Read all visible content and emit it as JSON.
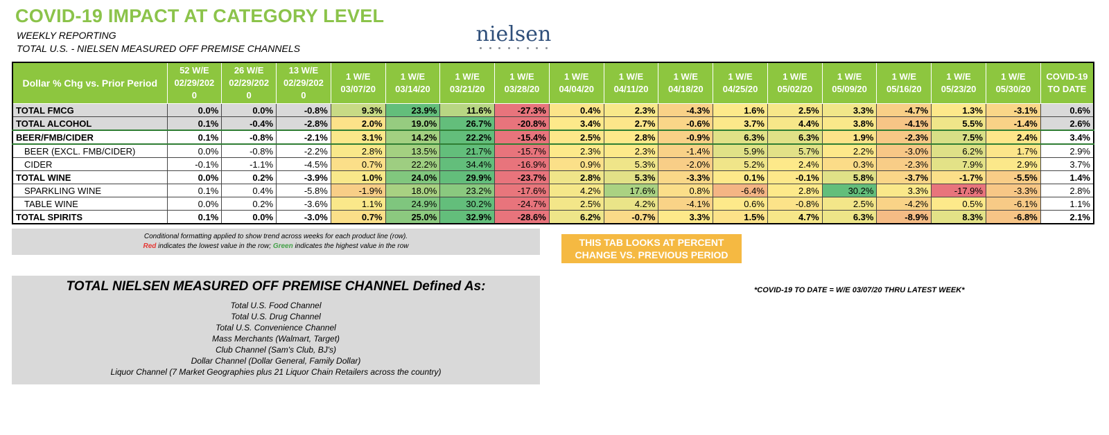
{
  "header": {
    "title": "COVID-19 IMPACT AT CATEGORY LEVEL",
    "subtitle1": "WEEKLY REPORTING",
    "subtitle2": "TOTAL U.S. - NIELSEN MEASURED OFF PREMISE CHANNELS",
    "logo_text": "nielsen"
  },
  "table": {
    "columns": [
      {
        "l1": "Dollar % Chg vs. Prior Period"
      },
      {
        "l1": "52 W/E",
        "l2": "02/29/202",
        "l3": "0"
      },
      {
        "l1": "26 W/E",
        "l2": "02/29/202",
        "l3": "0"
      },
      {
        "l1": "13 W/E",
        "l2": "02/29/202",
        "l3": "0"
      },
      {
        "l1": "1 W/E",
        "l2": "03/07/20"
      },
      {
        "l1": "1 W/E",
        "l2": "03/14/20"
      },
      {
        "l1": "1 W/E",
        "l2": "03/21/20"
      },
      {
        "l1": "1 W/E",
        "l2": "03/28/20"
      },
      {
        "l1": "1 W/E",
        "l2": "04/04/20"
      },
      {
        "l1": "1 W/E",
        "l2": "04/11/20"
      },
      {
        "l1": "1 W/E",
        "l2": "04/18/20"
      },
      {
        "l1": "1 W/E",
        "l2": "04/25/20"
      },
      {
        "l1": "1 W/E",
        "l2": "05/02/20"
      },
      {
        "l1": "1 W/E",
        "l2": "05/09/20"
      },
      {
        "l1": "1 W/E",
        "l2": "05/16/20"
      },
      {
        "l1": "1 W/E",
        "l2": "05/23/20"
      },
      {
        "l1": "1 W/E",
        "l2": "05/30/20"
      },
      {
        "l1": "COVID-19",
        "l2": "TO DATE"
      }
    ],
    "rows": [
      {
        "label": "TOTAL FMCG",
        "style": "bold-grey",
        "values": [
          "0.0%",
          "0.0%",
          "-0.8%",
          "9.3%",
          "23.9%",
          "11.6%",
          "-27.3%",
          "0.4%",
          "2.3%",
          "-4.3%",
          "1.6%",
          "2.5%",
          "3.3%",
          "-4.7%",
          "1.3%",
          "-3.1%",
          "0.6%"
        ]
      },
      {
        "label": "TOTAL ALCOHOL",
        "style": "bold-grey",
        "values": [
          "0.1%",
          "-0.4%",
          "-2.8%",
          "2.0%",
          "19.0%",
          "26.7%",
          "-20.8%",
          "3.4%",
          "2.7%",
          "-0.6%",
          "3.7%",
          "4.4%",
          "3.8%",
          "-4.1%",
          "5.5%",
          "-1.4%",
          "2.6%"
        ]
      },
      {
        "label": "BEER/FMB/CIDER",
        "style": "bold-sel",
        "values": [
          "0.1%",
          "-0.8%",
          "-2.1%",
          "3.1%",
          "14.2%",
          "22.2%",
          "-15.4%",
          "2.5%",
          "2.8%",
          "-0.9%",
          "6.3%",
          "6.3%",
          "1.9%",
          "-2.3%",
          "7.5%",
          "2.4%",
          "3.4%"
        ]
      },
      {
        "label": "BEER (EXCL. FMB/CIDER)",
        "style": "indent",
        "values": [
          "0.0%",
          "-0.8%",
          "-2.2%",
          "2.8%",
          "13.5%",
          "21.7%",
          "-15.7%",
          "2.3%",
          "2.3%",
          "-1.4%",
          "5.9%",
          "5.7%",
          "2.2%",
          "-3.0%",
          "6.2%",
          "1.7%",
          "2.9%"
        ]
      },
      {
        "label": "CIDER",
        "style": "indent",
        "values": [
          "-0.1%",
          "-1.1%",
          "-4.5%",
          "0.7%",
          "22.2%",
          "34.4%",
          "-16.9%",
          "0.9%",
          "5.3%",
          "-2.0%",
          "5.2%",
          "2.4%",
          "0.3%",
          "-2.3%",
          "7.9%",
          "2.9%",
          "3.7%"
        ]
      },
      {
        "label": "TOTAL WINE",
        "style": "bold",
        "values": [
          "0.0%",
          "0.2%",
          "-3.9%",
          "1.0%",
          "24.0%",
          "29.9%",
          "-23.7%",
          "2.8%",
          "5.3%",
          "-3.3%",
          "0.1%",
          "-0.1%",
          "5.8%",
          "-3.7%",
          "-1.7%",
          "-5.5%",
          "1.4%"
        ]
      },
      {
        "label": "SPARKLING WINE",
        "style": "indent",
        "values": [
          "0.1%",
          "0.4%",
          "-5.8%",
          "-1.9%",
          "18.0%",
          "23.2%",
          "-17.6%",
          "4.2%",
          "17.6%",
          "0.8%",
          "-6.4%",
          "2.8%",
          "30.2%",
          "3.3%",
          "-17.9%",
          "-3.3%",
          "2.8%"
        ]
      },
      {
        "label": "TABLE WINE",
        "style": "indent",
        "values": [
          "0.0%",
          "0.2%",
          "-3.6%",
          "1.1%",
          "24.9%",
          "30.2%",
          "-24.7%",
          "2.5%",
          "4.2%",
          "-4.1%",
          "0.6%",
          "-0.8%",
          "2.5%",
          "-4.2%",
          "0.5%",
          "-6.1%",
          "1.1%"
        ]
      },
      {
        "label": "TOTAL SPIRITS",
        "style": "bold",
        "values": [
          "0.1%",
          "0.0%",
          "-3.0%",
          "0.7%",
          "25.0%",
          "32.9%",
          "-28.6%",
          "6.2%",
          "-0.7%",
          "3.3%",
          "1.5%",
          "4.7%",
          "6.3%",
          "-8.9%",
          "8.3%",
          "-6.8%",
          "2.1%"
        ]
      }
    ]
  },
  "note": {
    "line1": "Conditional formatting applied to show trend across weeks for each product line (row).",
    "red_word": "Red",
    "line2_mid": " indicates the lowest value in the row; ",
    "green_word": "Green",
    "line2_end": " indicates the highest value in the row"
  },
  "orange_box": {
    "line1": "THIS TAB LOOKS AT PERCENT",
    "line2": "CHANGE VS. PREVIOUS PERIOD"
  },
  "definition": {
    "heading": "TOTAL NIELSEN MEASURED OFF PREMISE CHANNEL Defined As:",
    "items": [
      "Total U.S. Food Channel",
      "Total U.S. Drug Channel",
      "Total U.S. Convenience Channel",
      "Mass Merchants (Walmart, Target)",
      "Club Channel (Sam's Club, BJ's)",
      "Dollar Channel (Dollar General, Family Dollar)",
      "Liquor Channel (7 Market Geographies plus 21 Liquor Chain Retailers across the country)"
    ]
  },
  "covid_note": "*COVID-19 TO DATE = W/E 03/07/20 THRU LATEST WEEK*",
  "colors": {
    "header_green": "#8dc63f",
    "title_green": "#8bc34a",
    "scale_low": "#e8747c",
    "scale_mid": "#fde98a",
    "scale_high": "#63be7b",
    "orange": "#f5b942",
    "grey": "#d9d9d9"
  }
}
